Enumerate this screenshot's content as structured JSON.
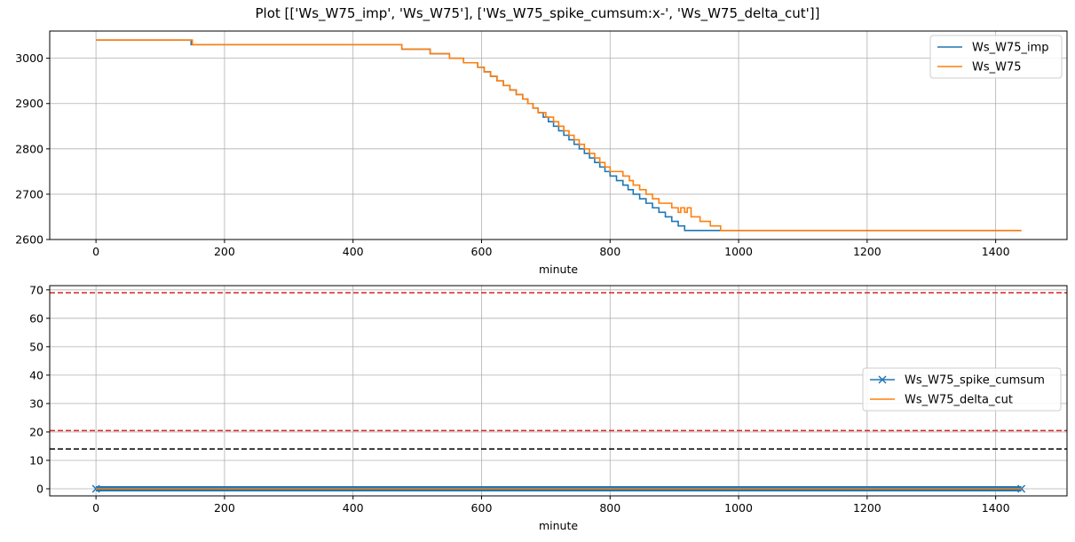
{
  "figure": {
    "title": "Plot [['Ws_W75_imp', 'Ws_W75'], ['Ws_W75_spike_cumsum:x-', 'Ws_W75_delta_cut']]"
  },
  "colors": {
    "blue": "#1f77b4",
    "orange": "#ff7f0e",
    "red": "#d62728",
    "black": "#000000",
    "grid": "#b0b0b0"
  },
  "chart_data": [
    {
      "type": "line",
      "xlabel": "minute",
      "ylabel": "",
      "xlim": [
        -72,
        1511
      ],
      "ylim": [
        2600,
        3060
      ],
      "xticks": [
        0,
        200,
        400,
        600,
        800,
        1000,
        1200,
        1400
      ],
      "yticks": [
        2600,
        2700,
        2800,
        2900,
        3000
      ],
      "grid": true,
      "legend": "top-right",
      "series": [
        {
          "name": "Ws_W75_imp",
          "style": "step",
          "color": "#1f77b4",
          "x": [
            0,
            148,
            476,
            520,
            550,
            572,
            594,
            604,
            614,
            624,
            634,
            644,
            654,
            664,
            672,
            680,
            688,
            696,
            704,
            712,
            720,
            728,
            736,
            744,
            752,
            760,
            768,
            776,
            784,
            792,
            800,
            810,
            820,
            828,
            836,
            846,
            856,
            866,
            876,
            886,
            896,
            906,
            916,
            926,
            940,
            956,
            972,
            990,
            1440
          ],
          "y": [
            3040,
            3030,
            3020,
            3010,
            3000,
            2990,
            2980,
            2970,
            2960,
            2950,
            2940,
            2930,
            2920,
            2910,
            2900,
            2890,
            2880,
            2870,
            2860,
            2850,
            2840,
            2830,
            2820,
            2810,
            2800,
            2790,
            2780,
            2770,
            2760,
            2750,
            2740,
            2730,
            2720,
            2710,
            2700,
            2690,
            2680,
            2670,
            2660,
            2650,
            2640,
            2630,
            2620,
            2620,
            2620,
            2620,
            2620,
            2620,
            2620
          ]
        },
        {
          "name": "Ws_W75",
          "style": "step",
          "color": "#ff7f0e",
          "x": [
            0,
            148,
            150,
            476,
            520,
            550,
            572,
            594,
            604,
            614,
            624,
            634,
            644,
            654,
            664,
            672,
            680,
            688,
            696,
            700,
            704,
            712,
            720,
            728,
            736,
            744,
            752,
            760,
            768,
            776,
            784,
            792,
            800,
            810,
            820,
            828,
            830,
            836,
            846,
            856,
            866,
            876,
            886,
            896,
            900,
            906,
            910,
            916,
            920,
            926,
            940,
            956,
            972,
            990,
            1440
          ],
          "y": [
            3040,
            3040,
            3030,
            3020,
            3010,
            3000,
            2990,
            2980,
            2970,
            2960,
            2950,
            2940,
            2930,
            2920,
            2910,
            2900,
            2890,
            2880,
            2880,
            2870,
            2870,
            2860,
            2850,
            2840,
            2830,
            2820,
            2810,
            2800,
            2790,
            2780,
            2770,
            2760,
            2750,
            2750,
            2740,
            2740,
            2730,
            2720,
            2710,
            2700,
            2690,
            2680,
            2680,
            2670,
            2670,
            2660,
            2670,
            2660,
            2670,
            2650,
            2640,
            2630,
            2620,
            2620,
            2620
          ]
        }
      ]
    },
    {
      "type": "line",
      "xlabel": "minute",
      "ylabel": "",
      "xlim": [
        -72,
        1511
      ],
      "ylim": [
        -2.5,
        71.5
      ],
      "xticks": [
        0,
        200,
        400,
        600,
        800,
        1000,
        1200,
        1400
      ],
      "yticks": [
        0,
        10,
        20,
        30,
        40,
        50,
        60,
        70
      ],
      "grid": true,
      "legend": "center-right",
      "series": [
        {
          "name": "Ws_W75_spike_cumsum",
          "style": "line-x",
          "color": "#1f77b4",
          "x": [
            0,
            1440
          ],
          "y": [
            0,
            0
          ]
        },
        {
          "name": "Ws_W75_delta_cut",
          "style": "line",
          "color": "#ff7f0e",
          "x": [
            0,
            1440
          ],
          "y": [
            0,
            0
          ]
        }
      ],
      "hlines": [
        {
          "y": 69,
          "color": "#d62728"
        },
        {
          "y": 20.5,
          "color": "#d62728"
        },
        {
          "y": 14,
          "color": "#000000"
        }
      ]
    }
  ]
}
